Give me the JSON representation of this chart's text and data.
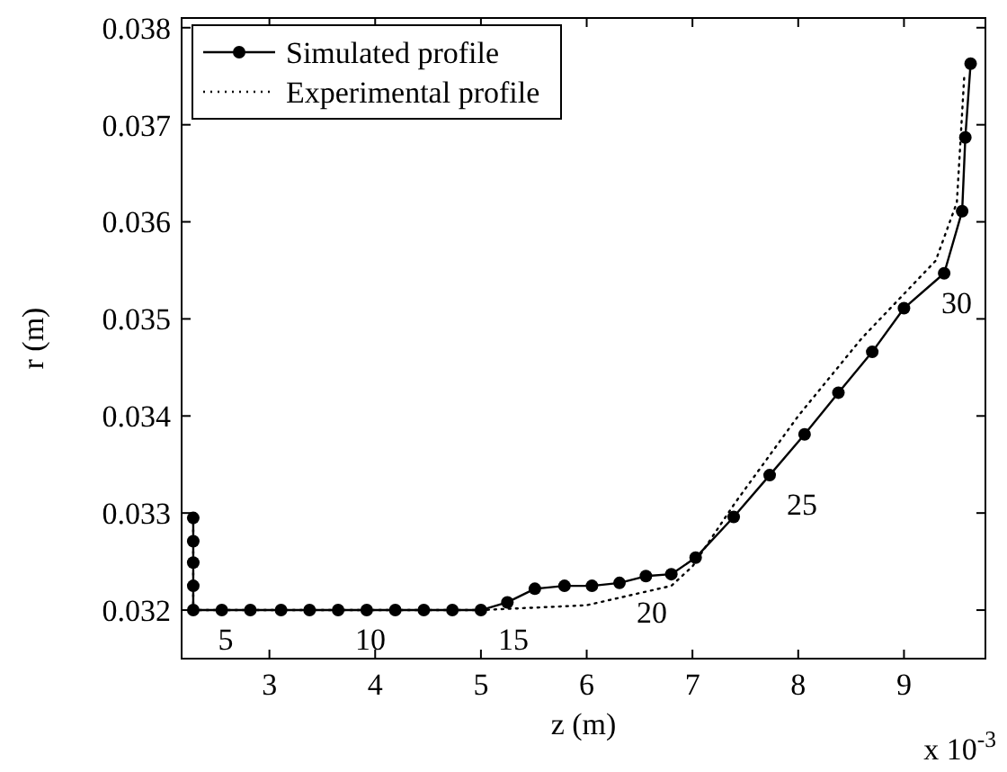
{
  "chart_data": {
    "type": "line",
    "xlabel": "z (m)",
    "ylabel": "r (m)",
    "xlim": [
      2.17,
      9.77
    ],
    "ylim": [
      0.0315,
      0.0381
    ],
    "xticks": [
      3,
      4,
      5,
      6,
      7,
      8,
      9
    ],
    "yticks": [
      0.032,
      0.033,
      0.034,
      0.035,
      0.036,
      0.037,
      0.038
    ],
    "grid": false,
    "legend": "top left",
    "series": [
      {
        "name": "Simulated profile",
        "color": "#000000",
        "marker": "circle",
        "line_style": "solid",
        "x": [
          2.28,
          2.28,
          2.28,
          2.28,
          2.28,
          2.55,
          2.82,
          3.11,
          3.38,
          3.65,
          3.92,
          4.19,
          4.46,
          4.73,
          5.0,
          5.25,
          5.51,
          5.79,
          6.05,
          6.31,
          6.56,
          6.8,
          7.03,
          7.39,
          7.73,
          8.06,
          8.38,
          8.7,
          9.0,
          9.38,
          9.55,
          9.58,
          9.63
        ],
        "values": [
          0.03295,
          0.03271,
          0.03249,
          0.03225,
          0.032,
          0.032,
          0.032,
          0.032,
          0.032,
          0.032,
          0.032,
          0.032,
          0.032,
          0.032,
          0.032,
          0.03208,
          0.03222,
          0.03225,
          0.03225,
          0.03228,
          0.03235,
          0.03237,
          0.03254,
          0.03296,
          0.03339,
          0.03381,
          0.03424,
          0.03466,
          0.03511,
          0.03547,
          0.03611,
          0.03687,
          0.03763
        ]
      },
      {
        "name": "Experimental profile",
        "color": "#000000",
        "marker": "none",
        "line_style": "dotted",
        "x": [
          2.28,
          2.28,
          5.0,
          6.0,
          6.8,
          7.0,
          7.4,
          8.0,
          8.6,
          9.3,
          9.5,
          9.57
        ],
        "values": [
          0.0329,
          0.032,
          0.032,
          0.03205,
          0.03225,
          0.03245,
          0.0331,
          0.034,
          0.0348,
          0.0356,
          0.0362,
          0.0375
        ]
      }
    ],
    "annotations": [
      {
        "text": "5",
        "x": 2.28,
        "y": 0.032
      },
      {
        "text": "10",
        "x": 3.65,
        "y": 0.032
      },
      {
        "text": "15",
        "x": 5.0,
        "y": 0.032
      },
      {
        "text": "20",
        "x": 6.31,
        "y": 0.03228
      },
      {
        "text": "25",
        "x": 7.73,
        "y": 0.03339
      },
      {
        "text": "30",
        "x": 9.38,
        "y": 0.03547
      },
      "x 10$^{-3}$"
    ]
  }
}
